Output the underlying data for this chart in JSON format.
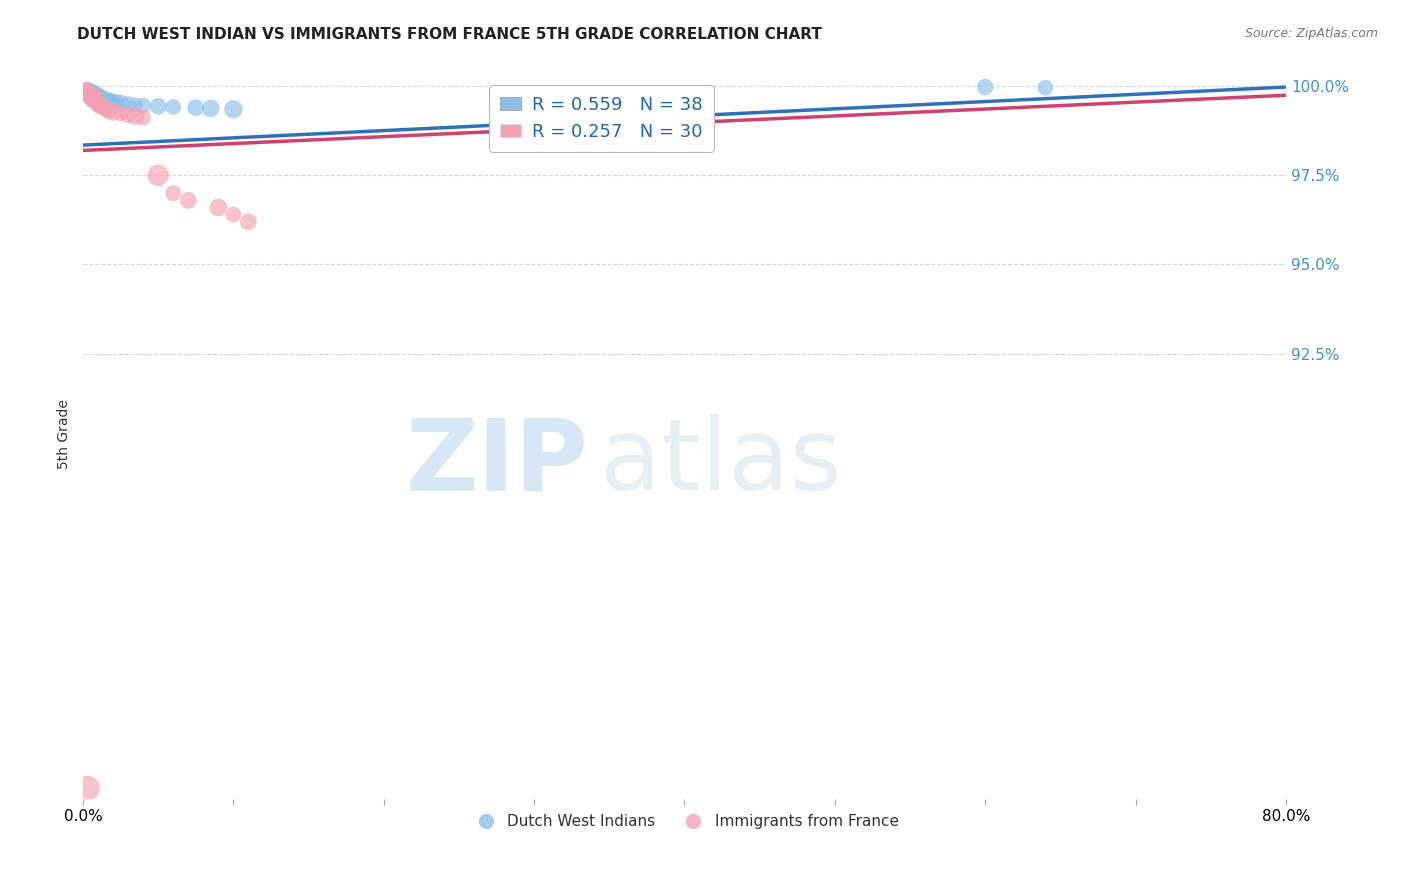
{
  "title": "DUTCH WEST INDIAN VS IMMIGRANTS FROM FRANCE 5TH GRADE CORRELATION CHART",
  "source": "Source: ZipAtlas.com",
  "ylabel": "5th Grade",
  "blue_color": "#8bbfe8",
  "pink_color": "#f4a0b5",
  "blue_line_color": "#3070b8",
  "pink_line_color": "#d04070",
  "legend_R1": "R = 0.559",
  "legend_N1": "N = 38",
  "legend_R2": "R = 0.257",
  "legend_N2": "N = 30",
  "watermark_zip": "ZIP",
  "watermark_atlas": "atlas",
  "legend_label1": "Dutch West Indians",
  "legend_label2": "Immigrants from France",
  "blue_scatter_x": [
    0.001,
    0.002,
    0.002,
    0.003,
    0.003,
    0.004,
    0.004,
    0.005,
    0.005,
    0.006,
    0.006,
    0.007,
    0.007,
    0.008,
    0.008,
    0.009,
    0.009,
    0.01,
    0.011,
    0.012,
    0.013,
    0.014,
    0.015,
    0.016,
    0.018,
    0.02,
    0.022,
    0.025,
    0.03,
    0.035,
    0.04,
    0.05,
    0.06,
    0.075,
    0.085,
    0.1,
    0.6,
    0.64
  ],
  "blue_scatter_y": [
    0.9985,
    0.999,
    0.998,
    0.9988,
    0.9978,
    0.9985,
    0.9975,
    0.9982,
    0.9972,
    0.998,
    0.997,
    0.9978,
    0.9968,
    0.9976,
    0.9966,
    0.9974,
    0.9964,
    0.9972,
    0.997,
    0.9968,
    0.9966,
    0.9964,
    0.9962,
    0.996,
    0.9958,
    0.9956,
    0.9954,
    0.9952,
    0.995,
    0.9948,
    0.9946,
    0.9944,
    0.9942,
    0.994,
    0.9938,
    0.9936,
    0.9998,
    0.9996
  ],
  "blue_scatter_size": [
    80,
    70,
    80,
    100,
    80,
    90,
    80,
    100,
    90,
    110,
    100,
    120,
    90,
    80,
    90,
    80,
    70,
    100,
    80,
    90,
    80,
    70,
    80,
    90,
    100,
    80,
    90,
    100,
    80,
    70,
    80,
    90,
    80,
    90,
    100,
    110,
    90,
    80
  ],
  "pink_scatter_x": [
    0.001,
    0.002,
    0.003,
    0.003,
    0.004,
    0.005,
    0.006,
    0.006,
    0.007,
    0.008,
    0.008,
    0.009,
    0.01,
    0.011,
    0.012,
    0.013,
    0.015,
    0.017,
    0.02,
    0.025,
    0.03,
    0.035,
    0.04,
    0.05,
    0.06,
    0.07,
    0.09,
    0.1,
    0.11,
    0.003
  ],
  "pink_scatter_y": [
    0.9988,
    0.9984,
    0.998,
    0.999,
    0.9976,
    0.9972,
    0.9968,
    0.9978,
    0.9964,
    0.996,
    0.997,
    0.9956,
    0.9952,
    0.9948,
    0.9944,
    0.994,
    0.9936,
    0.9932,
    0.9928,
    0.9924,
    0.992,
    0.9916,
    0.9912,
    0.975,
    0.97,
    0.968,
    0.966,
    0.964,
    0.962,
    0.803
  ],
  "pink_scatter_size": [
    90,
    80,
    90,
    80,
    80,
    90,
    100,
    80,
    110,
    80,
    90,
    80,
    90,
    100,
    80,
    70,
    80,
    90,
    100,
    80,
    90,
    100,
    80,
    150,
    80,
    90,
    100,
    80,
    90,
    200
  ],
  "blue_line_x0": 0.0,
  "blue_line_x1": 0.8,
  "blue_line_y0": 0.9835,
  "blue_line_y1": 0.9998,
  "pink_line_x0": 0.0,
  "pink_line_x1": 0.8,
  "pink_line_y0": 0.982,
  "pink_line_y1": 0.9975,
  "xlim_min": 0.0,
  "xlim_max": 0.8,
  "ylim_min": 0.8,
  "ylim_max": 1.005,
  "ytick_positions": [
    0.925,
    0.95,
    0.975,
    1.0
  ],
  "ytick_labels": [
    "92.5%",
    "95.0%",
    "97.5%",
    "100.0%"
  ],
  "grid_color": "#cccccc",
  "grid_style": "--",
  "grid_alpha": 0.8
}
